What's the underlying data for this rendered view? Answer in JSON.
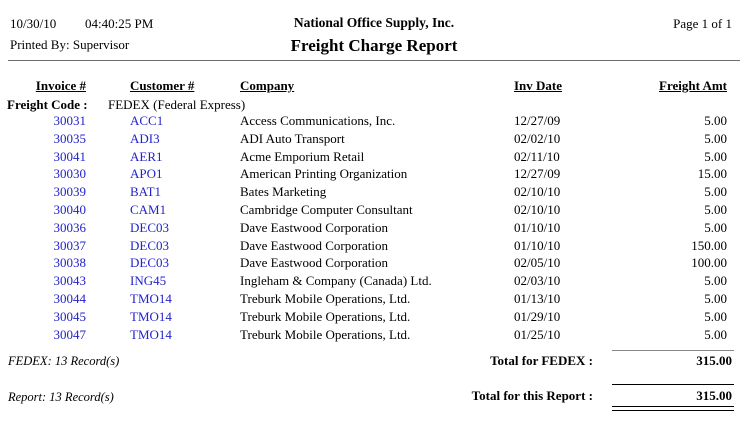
{
  "page_header": {
    "date": "10/30/10",
    "time": "04:40:25 PM",
    "printed_by": "Printed By: Supervisor",
    "company_name": "National Office Supply, Inc.",
    "report_title": "Freight Charge Report",
    "page_info": "Page 1 of 1"
  },
  "table": {
    "columns": {
      "invoice": "Invoice #",
      "customer": "Customer #",
      "company": "Company",
      "inv_date": "Inv Date",
      "freight_amt": "Freight Amt"
    },
    "freight_code_label": "Freight Code :",
    "freight_code_value": "FEDEX (Federal Express)",
    "rows": [
      {
        "invoice": "30031",
        "customer": "ACC1",
        "company": "Access Communications, Inc.",
        "inv_date": "12/27/09",
        "freight_amt": "5.00"
      },
      {
        "invoice": "30035",
        "customer": "ADI3",
        "company": "ADI Auto Transport",
        "inv_date": "02/02/10",
        "freight_amt": "5.00"
      },
      {
        "invoice": "30041",
        "customer": "AER1",
        "company": "Acme Emporium Retail",
        "inv_date": "02/11/10",
        "freight_amt": "5.00"
      },
      {
        "invoice": "30030",
        "customer": "APO1",
        "company": "American Printing Organization",
        "inv_date": "12/27/09",
        "freight_amt": "15.00"
      },
      {
        "invoice": "30039",
        "customer": "BAT1",
        "company": "Bates Marketing",
        "inv_date": "02/10/10",
        "freight_amt": "5.00"
      },
      {
        "invoice": "30040",
        "customer": "CAM1",
        "company": "Cambridge Computer Consultant",
        "inv_date": "02/10/10",
        "freight_amt": "5.00"
      },
      {
        "invoice": "30036",
        "customer": "DEC03",
        "company": "Dave Eastwood Corporation",
        "inv_date": "01/10/10",
        "freight_amt": "5.00"
      },
      {
        "invoice": "30037",
        "customer": "DEC03",
        "company": "Dave Eastwood Corporation",
        "inv_date": "01/10/10",
        "freight_amt": "150.00"
      },
      {
        "invoice": "30038",
        "customer": "DEC03",
        "company": "Dave Eastwood Corporation",
        "inv_date": "02/05/10",
        "freight_amt": "100.00"
      },
      {
        "invoice": "30043",
        "customer": "ING45",
        "company": "Ingleham & Company (Canada) Ltd.",
        "inv_date": "02/03/10",
        "freight_amt": "5.00"
      },
      {
        "invoice": "30044",
        "customer": "TMO14",
        "company": "Treburk Mobile Operations, Ltd.",
        "inv_date": "01/13/10",
        "freight_amt": "5.00"
      },
      {
        "invoice": "30045",
        "customer": "TMO14",
        "company": "Treburk Mobile Operations, Ltd.",
        "inv_date": "01/29/10",
        "freight_amt": "5.00"
      },
      {
        "invoice": "30047",
        "customer": "TMO14",
        "company": "Treburk Mobile Operations, Ltd.",
        "inv_date": "01/25/10",
        "freight_amt": "5.00"
      }
    ]
  },
  "group_footer": {
    "record_count": "FEDEX: 13 Record(s)",
    "total_label": "Total for FEDEX :",
    "total_value": "315.00"
  },
  "report_footer": {
    "record_count": "Report: 13 Record(s)",
    "total_label": "Total for this Report :",
    "total_value": "315.00"
  },
  "colors": {
    "link_blue": "#2222CC",
    "header_rule_gray": "#6e6e6e",
    "text": "#000000",
    "background": "#FFFFFF"
  }
}
